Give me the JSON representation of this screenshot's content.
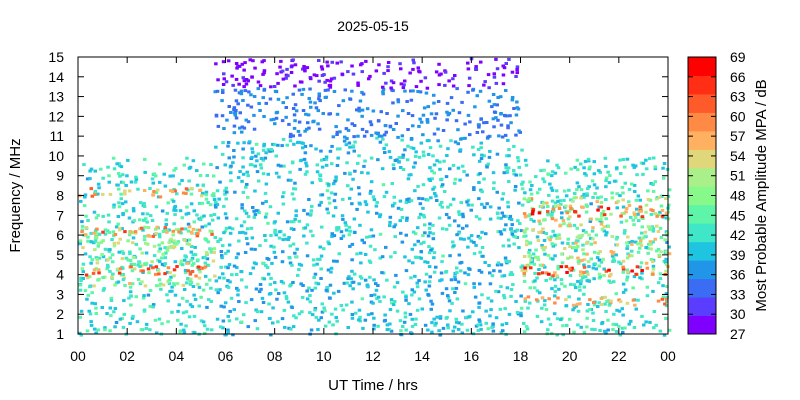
{
  "chart_data": {
    "type": "heatmap",
    "title": "2025-05-15",
    "xlabel": "UT Time / hrs",
    "ylabel": "Frequency / MHz",
    "colorbar_label": "Most Probable Amplitude MPA / dB",
    "x_ticks": [
      "00",
      "02",
      "04",
      "06",
      "08",
      "10",
      "12",
      "14",
      "16",
      "18",
      "20",
      "22",
      "00"
    ],
    "xlim": [
      0,
      24
    ],
    "y_ticks": [
      "1",
      "2",
      "3",
      "4",
      "5",
      "6",
      "7",
      "8",
      "9",
      "10",
      "11",
      "12",
      "13",
      "14",
      "15"
    ],
    "ylim": [
      1,
      15
    ],
    "colorbar_ticks": [
      "27",
      "30",
      "33",
      "36",
      "39",
      "42",
      "45",
      "48",
      "51",
      "54",
      "57",
      "60",
      "63",
      "66",
      "69"
    ],
    "colorbar_range": [
      27,
      69
    ],
    "colorbar_colors": [
      "#7f00ff",
      "#5a3dfe",
      "#3a6cf4",
      "#2196e8",
      "#1ec4e0",
      "#3fe6c8",
      "#5ef5a8",
      "#86f98a",
      "#aaf08a",
      "#e0d67a",
      "#ffb060",
      "#ff8a45",
      "#ff5a2a",
      "#ff2e14",
      "#ff0000"
    ],
    "bands": [
      {
        "x": [
          0,
          5.5
        ],
        "y": [
          1,
          10
        ],
        "dB": [
          38,
          46
        ]
      },
      {
        "x": [
          0,
          5.5
        ],
        "y": [
          3.5,
          6.5
        ],
        "dB": [
          43,
          56
        ]
      },
      {
        "x": [
          0,
          5.5
        ],
        "y": [
          4,
          4.5
        ],
        "dB": [
          58,
          66
        ]
      },
      {
        "x": [
          0,
          5.5
        ],
        "y": [
          6,
          6.5
        ],
        "dB": [
          55,
          65
        ]
      },
      {
        "x": [
          0,
          5.5
        ],
        "y": [
          8,
          8.5
        ],
        "dB": [
          52,
          62
        ]
      },
      {
        "x": [
          5.5,
          18
        ],
        "y": [
          1,
          11
        ],
        "dB": [
          36,
          44
        ]
      },
      {
        "x": [
          5.5,
          18
        ],
        "y": [
          11,
          13.5
        ],
        "dB": [
          33,
          38
        ]
      },
      {
        "x": [
          5.5,
          18
        ],
        "y": [
          13.5,
          15
        ],
        "dB": [
          27,
          31
        ]
      },
      {
        "x": [
          18,
          24
        ],
        "y": [
          1,
          10
        ],
        "dB": [
          38,
          46
        ]
      },
      {
        "x": [
          18,
          24
        ],
        "y": [
          4,
          8
        ],
        "dB": [
          45,
          58
        ]
      },
      {
        "x": [
          18,
          24
        ],
        "y": [
          4,
          4.5
        ],
        "dB": [
          58,
          68
        ]
      },
      {
        "x": [
          18,
          24
        ],
        "y": [
          7,
          7.5
        ],
        "dB": [
          56,
          68
        ]
      },
      {
        "x": [
          18,
          24
        ],
        "y": [
          2.5,
          3
        ],
        "dB": [
          52,
          62
        ]
      }
    ]
  }
}
